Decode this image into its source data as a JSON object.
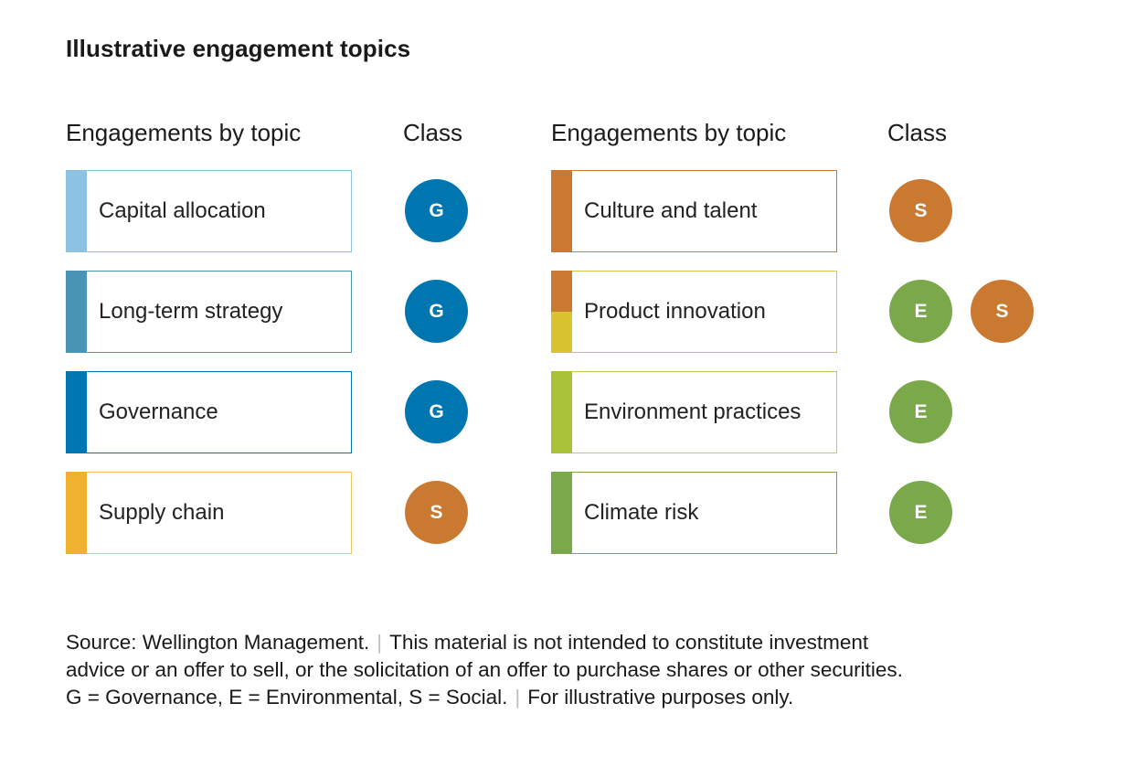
{
  "title": "Illustrative engagement topics",
  "headers": {
    "topic_left": "Engagements by topic",
    "class_left": "Class",
    "topic_right": "Engagements by topic",
    "class_right": "Class"
  },
  "colors": {
    "governance": "#0076b0",
    "social": "#c97a30",
    "environmental": "#7aa84a"
  },
  "topics": [
    {
      "label": "Capital allocation",
      "bar_colors": [
        "#8cc3e3"
      ],
      "border_color": "#8cc3e3",
      "classes": [
        "G"
      ]
    },
    {
      "label": "Long-term strategy",
      "bar_colors": [
        "#4a95b5"
      ],
      "border_color": "#4a95b5",
      "classes": [
        "G"
      ]
    },
    {
      "label": "Governance",
      "bar_colors": [
        "#0076b0"
      ],
      "border_color": "#0076b0",
      "classes": [
        "G"
      ]
    },
    {
      "label": "Supply chain",
      "bar_colors": [
        "#f0b030"
      ],
      "border_color": "#f0c460",
      "classes": [
        "S"
      ]
    },
    {
      "label": "Culture and talent",
      "bar_colors": [
        "#c97a30"
      ],
      "border_color": "#c97a30",
      "classes": [
        "S"
      ]
    },
    {
      "label": "Product innovation",
      "bar_colors": [
        "#c97a30",
        "#d9c430"
      ],
      "border_color": "#d6c24a",
      "classes": [
        "E",
        "S"
      ]
    },
    {
      "label": "Environment practices",
      "bar_colors": [
        "#a8c23a"
      ],
      "border_color": "#b8cc5a",
      "classes": [
        "E"
      ]
    },
    {
      "label": "Climate risk",
      "bar_colors": [
        "#7aa84a"
      ],
      "border_color": "#7aa84a",
      "classes": [
        "E"
      ]
    }
  ],
  "footnote": {
    "line1a": "Source: Wellington Management.",
    "line1b": "This material is not intended to constitute investment",
    "line2": "advice or an offer to sell, or the solicitation of an offer to purchase shares or other securities.",
    "line3a": "G = Governance, E = Environmental, S = Social.",
    "line3b": "For illustrative purposes only.",
    "separator": "|"
  }
}
